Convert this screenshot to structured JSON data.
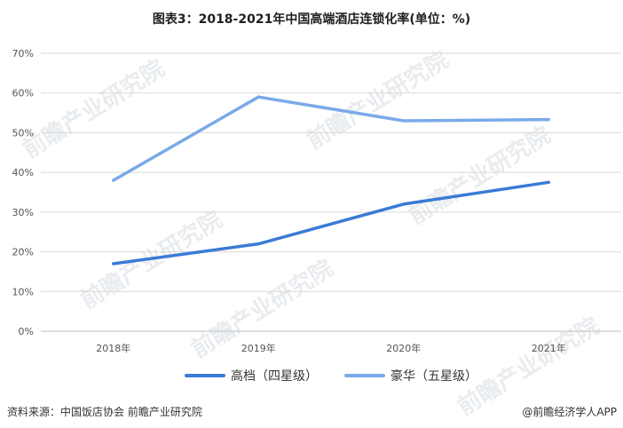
{
  "chart_data": {
    "type": "line",
    "title": "图表3：2018-2021年中国高端酒店连锁化率(单位：%)",
    "categories": [
      "2018年",
      "2019年",
      "2020年",
      "2021年"
    ],
    "ylim": [
      0,
      70
    ],
    "yticks": [
      "0%",
      "10%",
      "20%",
      "30%",
      "40%",
      "50%",
      "60%",
      "70%"
    ],
    "grid": true,
    "legend_position": "bottom",
    "series": [
      {
        "name": "高档（四星级）",
        "values": [
          17,
          22,
          32,
          37.5
        ],
        "color": "#3a7bd5"
      },
      {
        "name": "豪华（五星级）",
        "values": [
          38,
          59,
          53,
          53.3
        ],
        "color": "#7aaae8"
      }
    ]
  },
  "footer": {
    "source": "资料来源：中国饭店协会 前瞻产业研究院",
    "brand": "@前瞻经济学人APP"
  },
  "watermark": {
    "text": "前瞻产业研究院"
  }
}
